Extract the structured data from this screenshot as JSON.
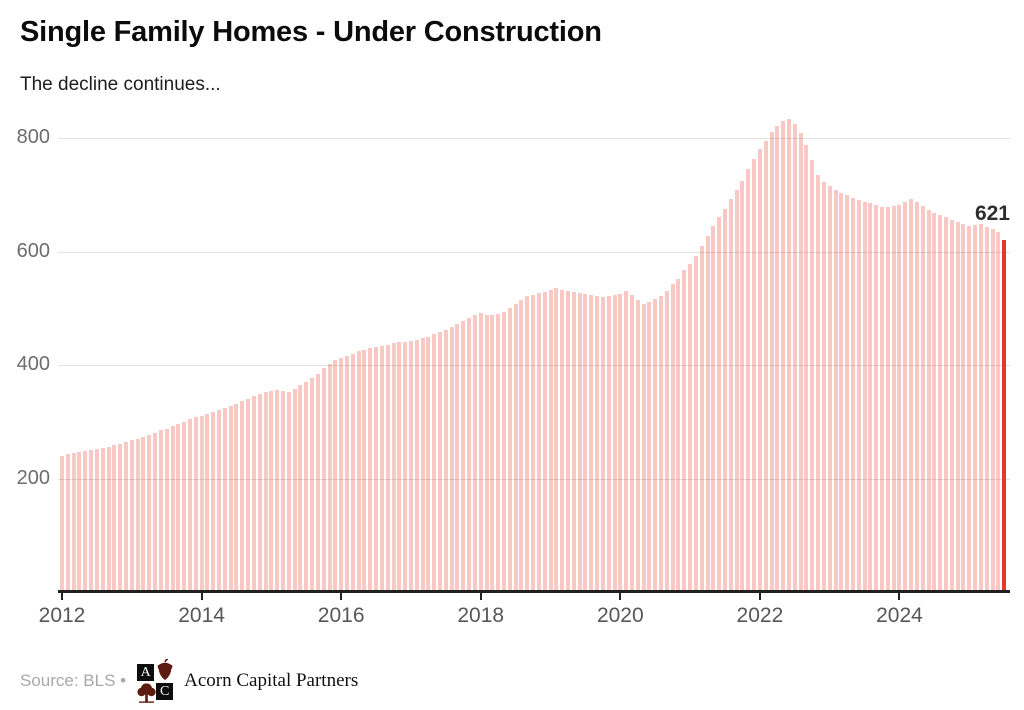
{
  "header": {
    "title": "Single Family Homes - Under Construction",
    "subtitle": "The decline continues..."
  },
  "annotation": {
    "last_value_label": "621"
  },
  "footer": {
    "source_prefix": "Source: BLS •",
    "brand": "Acorn Capital Partners",
    "logo_letters": [
      "A",
      "C"
    ]
  },
  "colors": {
    "bar_fill": "rgba(228,57,42,0.28)",
    "highlight_fill": "#E4392A",
    "gridline": "#E2E2E2",
    "axis": "#212121",
    "tick": "#212121",
    "logo_icon": "#5E1B10"
  },
  "chart_data": {
    "type": "bar",
    "title": "Single Family Homes - Under Construction",
    "subtitle": "The decline continues...",
    "frequency": "monthly",
    "x_start": "2012-01",
    "x_end": "2025-07",
    "x_tick_labels": [
      "2012",
      "2014",
      "2016",
      "2018",
      "2020",
      "2022",
      "2024"
    ],
    "y_ticks": [
      200,
      400,
      600,
      800
    ],
    "ylim": [
      0,
      849
    ],
    "grid": true,
    "legend": false,
    "highlight_last_bar": true,
    "last_value": 621,
    "values": [
      240,
      243,
      245,
      247,
      248,
      250,
      252,
      254,
      256,
      259,
      261,
      264,
      267,
      270,
      273,
      277,
      281,
      285,
      288,
      292,
      296,
      300,
      304,
      308,
      311,
      314,
      317,
      320,
      324,
      328,
      332,
      336,
      340,
      345,
      349,
      353,
      355,
      356,
      354,
      352,
      358,
      364,
      370,
      377,
      385,
      394,
      402,
      408,
      412,
      416,
      420,
      424,
      427,
      430,
      432,
      434,
      436,
      438,
      440,
      441,
      442,
      444,
      447,
      450,
      454,
      458,
      462,
      467,
      472,
      478,
      483,
      488,
      491,
      489,
      488,
      490,
      494,
      500,
      508,
      515,
      521,
      524,
      527,
      529,
      532,
      535,
      533,
      531,
      529,
      527,
      525,
      523,
      521,
      520,
      521,
      523,
      525,
      530,
      524,
      515,
      508,
      511,
      516,
      522,
      530,
      543,
      552,
      567,
      578,
      592,
      610,
      628,
      645,
      660,
      675,
      692,
      708,
      725,
      745,
      763,
      780,
      795,
      810,
      822,
      830,
      834,
      824,
      808,
      788,
      762,
      735,
      723,
      715,
      709,
      703,
      699,
      695,
      690,
      688,
      685,
      682,
      679,
      678,
      680,
      682,
      688,
      693,
      688,
      680,
      673,
      668,
      664,
      660,
      655,
      652,
      648,
      645,
      646,
      648,
      643,
      639,
      634,
      621
    ]
  }
}
